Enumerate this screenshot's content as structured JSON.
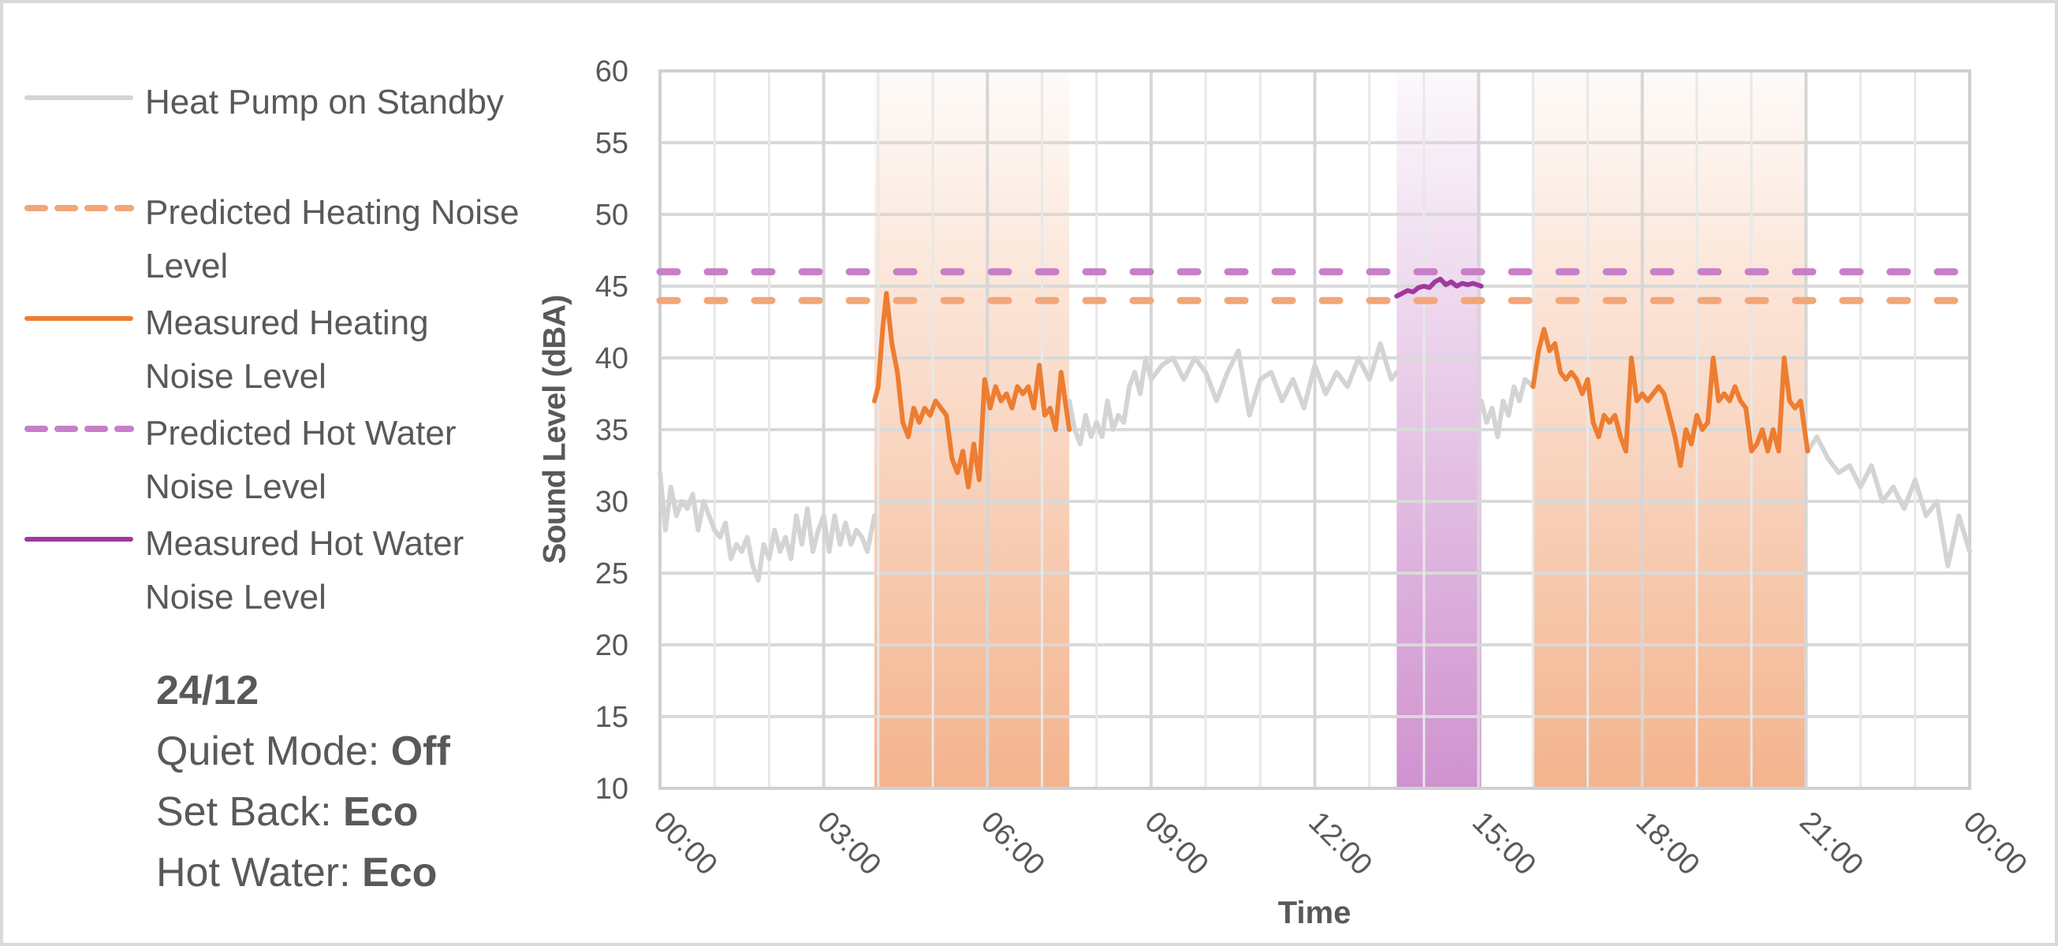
{
  "chart_data": {
    "type": "line",
    "title": "",
    "xlabel": "Time",
    "ylabel": "Sound Level (dBA)",
    "ylim": [
      10,
      60
    ],
    "xlim_hours": [
      0,
      24
    ],
    "y_ticks": [
      "60",
      "55",
      "50",
      "45",
      "40",
      "35",
      "30",
      "25",
      "20",
      "15",
      "10"
    ],
    "x_ticks": [
      "00:00",
      "03:00",
      "06:00",
      "09:00",
      "12:00",
      "15:00",
      "18:00",
      "21:00",
      "00:00"
    ],
    "grid": true,
    "legend_position": "left",
    "shaded_regions": [
      {
        "name": "Heating",
        "start_hour": 3.93,
        "end_hour": 7.5,
        "color": "#f2a679"
      },
      {
        "name": "Hot Water",
        "start_hour": 13.5,
        "end_hour": 15.05,
        "color": "#c77fc7"
      },
      {
        "name": "Heating",
        "start_hour": 16.0,
        "end_hour": 21.03,
        "color": "#f2a679"
      }
    ],
    "series": [
      {
        "name": "Heat Pump on Standby",
        "color": "#d4d4d4",
        "style": "solid",
        "segments": [
          {
            "x": [
              0.0,
              0.1,
              0.2,
              0.3,
              0.4,
              0.5,
              0.6,
              0.7,
              0.8,
              0.9,
              1.0,
              1.1,
              1.2,
              1.3,
              1.4,
              1.5,
              1.6,
              1.7,
              1.8,
              1.9,
              2.0,
              2.1,
              2.2,
              2.3,
              2.4,
              2.5,
              2.6,
              2.7,
              2.8,
              2.9,
              3.0,
              3.1,
              3.2,
              3.3,
              3.4,
              3.5,
              3.6,
              3.7,
              3.8,
              3.93
            ],
            "y": [
              32,
              28,
              31,
              29,
              30,
              29.5,
              30.5,
              28,
              30,
              29,
              28,
              27.5,
              28.5,
              26,
              27,
              26.5,
              27.5,
              25.5,
              24.5,
              27,
              26,
              28,
              26.5,
              27.5,
              26,
              29,
              27,
              29.5,
              26.5,
              28,
              29,
              26.5,
              29,
              27,
              28.5,
              27,
              28,
              27.5,
              26.5,
              29
            ]
          },
          {
            "x": [
              7.5,
              7.6,
              7.7,
              7.8,
              7.9,
              8.0,
              8.1,
              8.2,
              8.3,
              8.4,
              8.5,
              8.6,
              8.7,
              8.8,
              8.9,
              9.0,
              9.2,
              9.4,
              9.6,
              9.8,
              10.0,
              10.2,
              10.4,
              10.6,
              10.8,
              11.0,
              11.2,
              11.4,
              11.6,
              11.8,
              12.0,
              12.2,
              12.4,
              12.6,
              12.8,
              13.0,
              13.2,
              13.4,
              13.5
            ],
            "y": [
              37,
              35,
              34,
              36,
              34.5,
              35.5,
              34.5,
              37,
              35,
              36,
              35.5,
              38,
              39,
              37.5,
              40,
              38.5,
              39.5,
              40,
              38.5,
              40,
              39,
              37,
              39,
              40.5,
              36,
              38.5,
              39,
              37,
              38.5,
              36.5,
              39.5,
              37.5,
              39,
              38,
              40,
              38.5,
              41,
              38.5,
              39
            ]
          },
          {
            "x": [
              15.05,
              15.15,
              15.25,
              15.35,
              15.45,
              15.55,
              15.65,
              15.75,
              15.85,
              16.0
            ],
            "y": [
              37,
              35.5,
              36.5,
              34.5,
              37,
              36,
              38,
              37,
              38.5,
              38
            ]
          },
          {
            "x": [
              21.03,
              21.2,
              21.4,
              21.6,
              21.8,
              22.0,
              22.2,
              22.4,
              22.6,
              22.8,
              23.0,
              23.2,
              23.4,
              23.6,
              23.8,
              24.0
            ],
            "y": [
              33.5,
              34.5,
              33,
              32,
              32.5,
              31,
              32.5,
              30,
              31,
              29.5,
              31.5,
              29,
              30,
              25.5,
              29,
              26.5
            ]
          }
        ]
      },
      {
        "name": "Predicted Heating Noise Level",
        "color": "#f2a679",
        "style": "dashed",
        "x": [
          0,
          24
        ],
        "y": [
          44,
          44
        ]
      },
      {
        "name": "Measured Heating Noise Level",
        "color": "#ed7d31",
        "style": "solid",
        "segments": [
          {
            "x": [
              3.93,
              4.0,
              4.08,
              4.15,
              4.25,
              4.35,
              4.45,
              4.55,
              4.65,
              4.75,
              4.85,
              4.95,
              5.05,
              5.15,
              5.25,
              5.35,
              5.45,
              5.55,
              5.65,
              5.75,
              5.85,
              5.95,
              6.05,
              6.15,
              6.25,
              6.35,
              6.45,
              6.55,
              6.65,
              6.75,
              6.85,
              6.95,
              7.05,
              7.15,
              7.25,
              7.35,
              7.5
            ],
            "y": [
              37,
              38,
              42,
              44.5,
              41,
              39,
              35.5,
              34.5,
              36.5,
              35.5,
              36.5,
              36,
              37,
              36.5,
              36,
              33,
              32,
              33.5,
              31,
              34,
              31.5,
              38.5,
              36.5,
              38,
              37,
              37.5,
              36.5,
              38,
              37.5,
              38,
              36.5,
              39.5,
              36,
              36.5,
              35,
              39,
              35
            ]
          },
          {
            "x": [
              16.0,
              16.1,
              16.2,
              16.3,
              16.4,
              16.5,
              16.6,
              16.7,
              16.8,
              16.9,
              17.0,
              17.1,
              17.2,
              17.3,
              17.4,
              17.5,
              17.6,
              17.7,
              17.8,
              17.9,
              18.0,
              18.1,
              18.2,
              18.3,
              18.4,
              18.5,
              18.6,
              18.7,
              18.8,
              18.9,
              19.0,
              19.1,
              19.2,
              19.3,
              19.4,
              19.5,
              19.6,
              19.7,
              19.8,
              19.9,
              20.0,
              20.1,
              20.2,
              20.3,
              20.4,
              20.5,
              20.6,
              20.7,
              20.8,
              20.9,
              21.03
            ],
            "y": [
              38,
              40.5,
              42,
              40.5,
              41,
              39,
              38.5,
              39,
              38.5,
              37.5,
              38.5,
              35.5,
              34.5,
              36,
              35.5,
              36,
              34.5,
              33.5,
              40,
              37,
              37.5,
              37,
              37.5,
              38,
              37.5,
              36,
              34.5,
              32.5,
              35,
              34,
              36,
              35,
              35.5,
              40,
              37,
              37.5,
              37,
              38,
              37,
              36.5,
              33.5,
              34,
              35,
              33.5,
              35,
              33.5,
              40,
              37,
              36.5,
              37,
              33.5
            ]
          }
        ]
      },
      {
        "name": "Predicted Hot Water Noise Level",
        "color": "#c77fc7",
        "style": "dashed",
        "x": [
          0,
          24
        ],
        "y": [
          46,
          46
        ]
      },
      {
        "name": "Measured Hot Water Noise Level",
        "color": "#a0389f",
        "style": "solid",
        "x": [
          13.5,
          13.6,
          13.7,
          13.8,
          13.9,
          14.0,
          14.1,
          14.2,
          14.3,
          14.4,
          14.5,
          14.6,
          14.7,
          14.8,
          14.9,
          15.05
        ],
        "y": [
          44.3,
          44.5,
          44.7,
          44.6,
          44.9,
          45.0,
          44.9,
          45.3,
          45.5,
          45.1,
          45.3,
          45.0,
          45.2,
          45.1,
          45.2,
          45.0
        ]
      }
    ]
  },
  "legend": {
    "items": [
      {
        "label": "Heat Pump on Standby",
        "color": "#d4d4d4",
        "style": "solid"
      },
      {
        "label": "Predicted Heating Noise Level",
        "color": "#f2a679",
        "style": "dashed"
      },
      {
        "label": "Measured Heating Noise Level",
        "color": "#ed7d31",
        "style": "solid"
      },
      {
        "label": "Predicted Hot Water Noise Level",
        "color": "#c77fc7",
        "style": "dashed"
      },
      {
        "label": "Measured Hot Water Noise Level",
        "color": "#a0389f",
        "style": "solid"
      }
    ]
  },
  "status": {
    "date": "24/12",
    "quiet_mode_label": "Quiet Mode: ",
    "quiet_mode_value": "Off",
    "set_back_label": "Set Back: ",
    "set_back_value": "Eco",
    "hot_water_label": "Hot Water: ",
    "hot_water_value": "Eco"
  },
  "axes": {
    "x_title": "Time",
    "y_title": "Sound Level (dBA)"
  }
}
